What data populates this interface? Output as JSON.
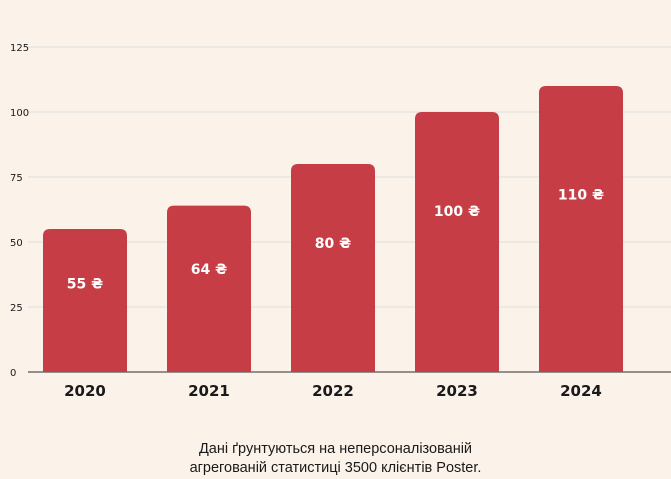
{
  "chart_data": {
    "type": "bar",
    "categories": [
      "2020",
      "2021",
      "2022",
      "2023",
      "2024"
    ],
    "values": [
      55,
      64,
      80,
      100,
      110
    ],
    "value_labels": [
      "55 ₴",
      "64 ₴",
      "80 ₴",
      "100 ₴",
      "110 ₴"
    ],
    "title": "",
    "xlabel": "",
    "ylabel": "",
    "ylim": [
      0,
      125
    ],
    "yticks": [
      "0",
      "25",
      "50",
      "75",
      "100",
      "125"
    ],
    "grid": true,
    "bar_color": "#c73d45",
    "grid_color": "#dddddd"
  },
  "footnote": {
    "line1": "Дані ґрунтуються на неперсоналізованій",
    "line2": "агрегованій статистиці 3500 клієнтів Poster."
  }
}
